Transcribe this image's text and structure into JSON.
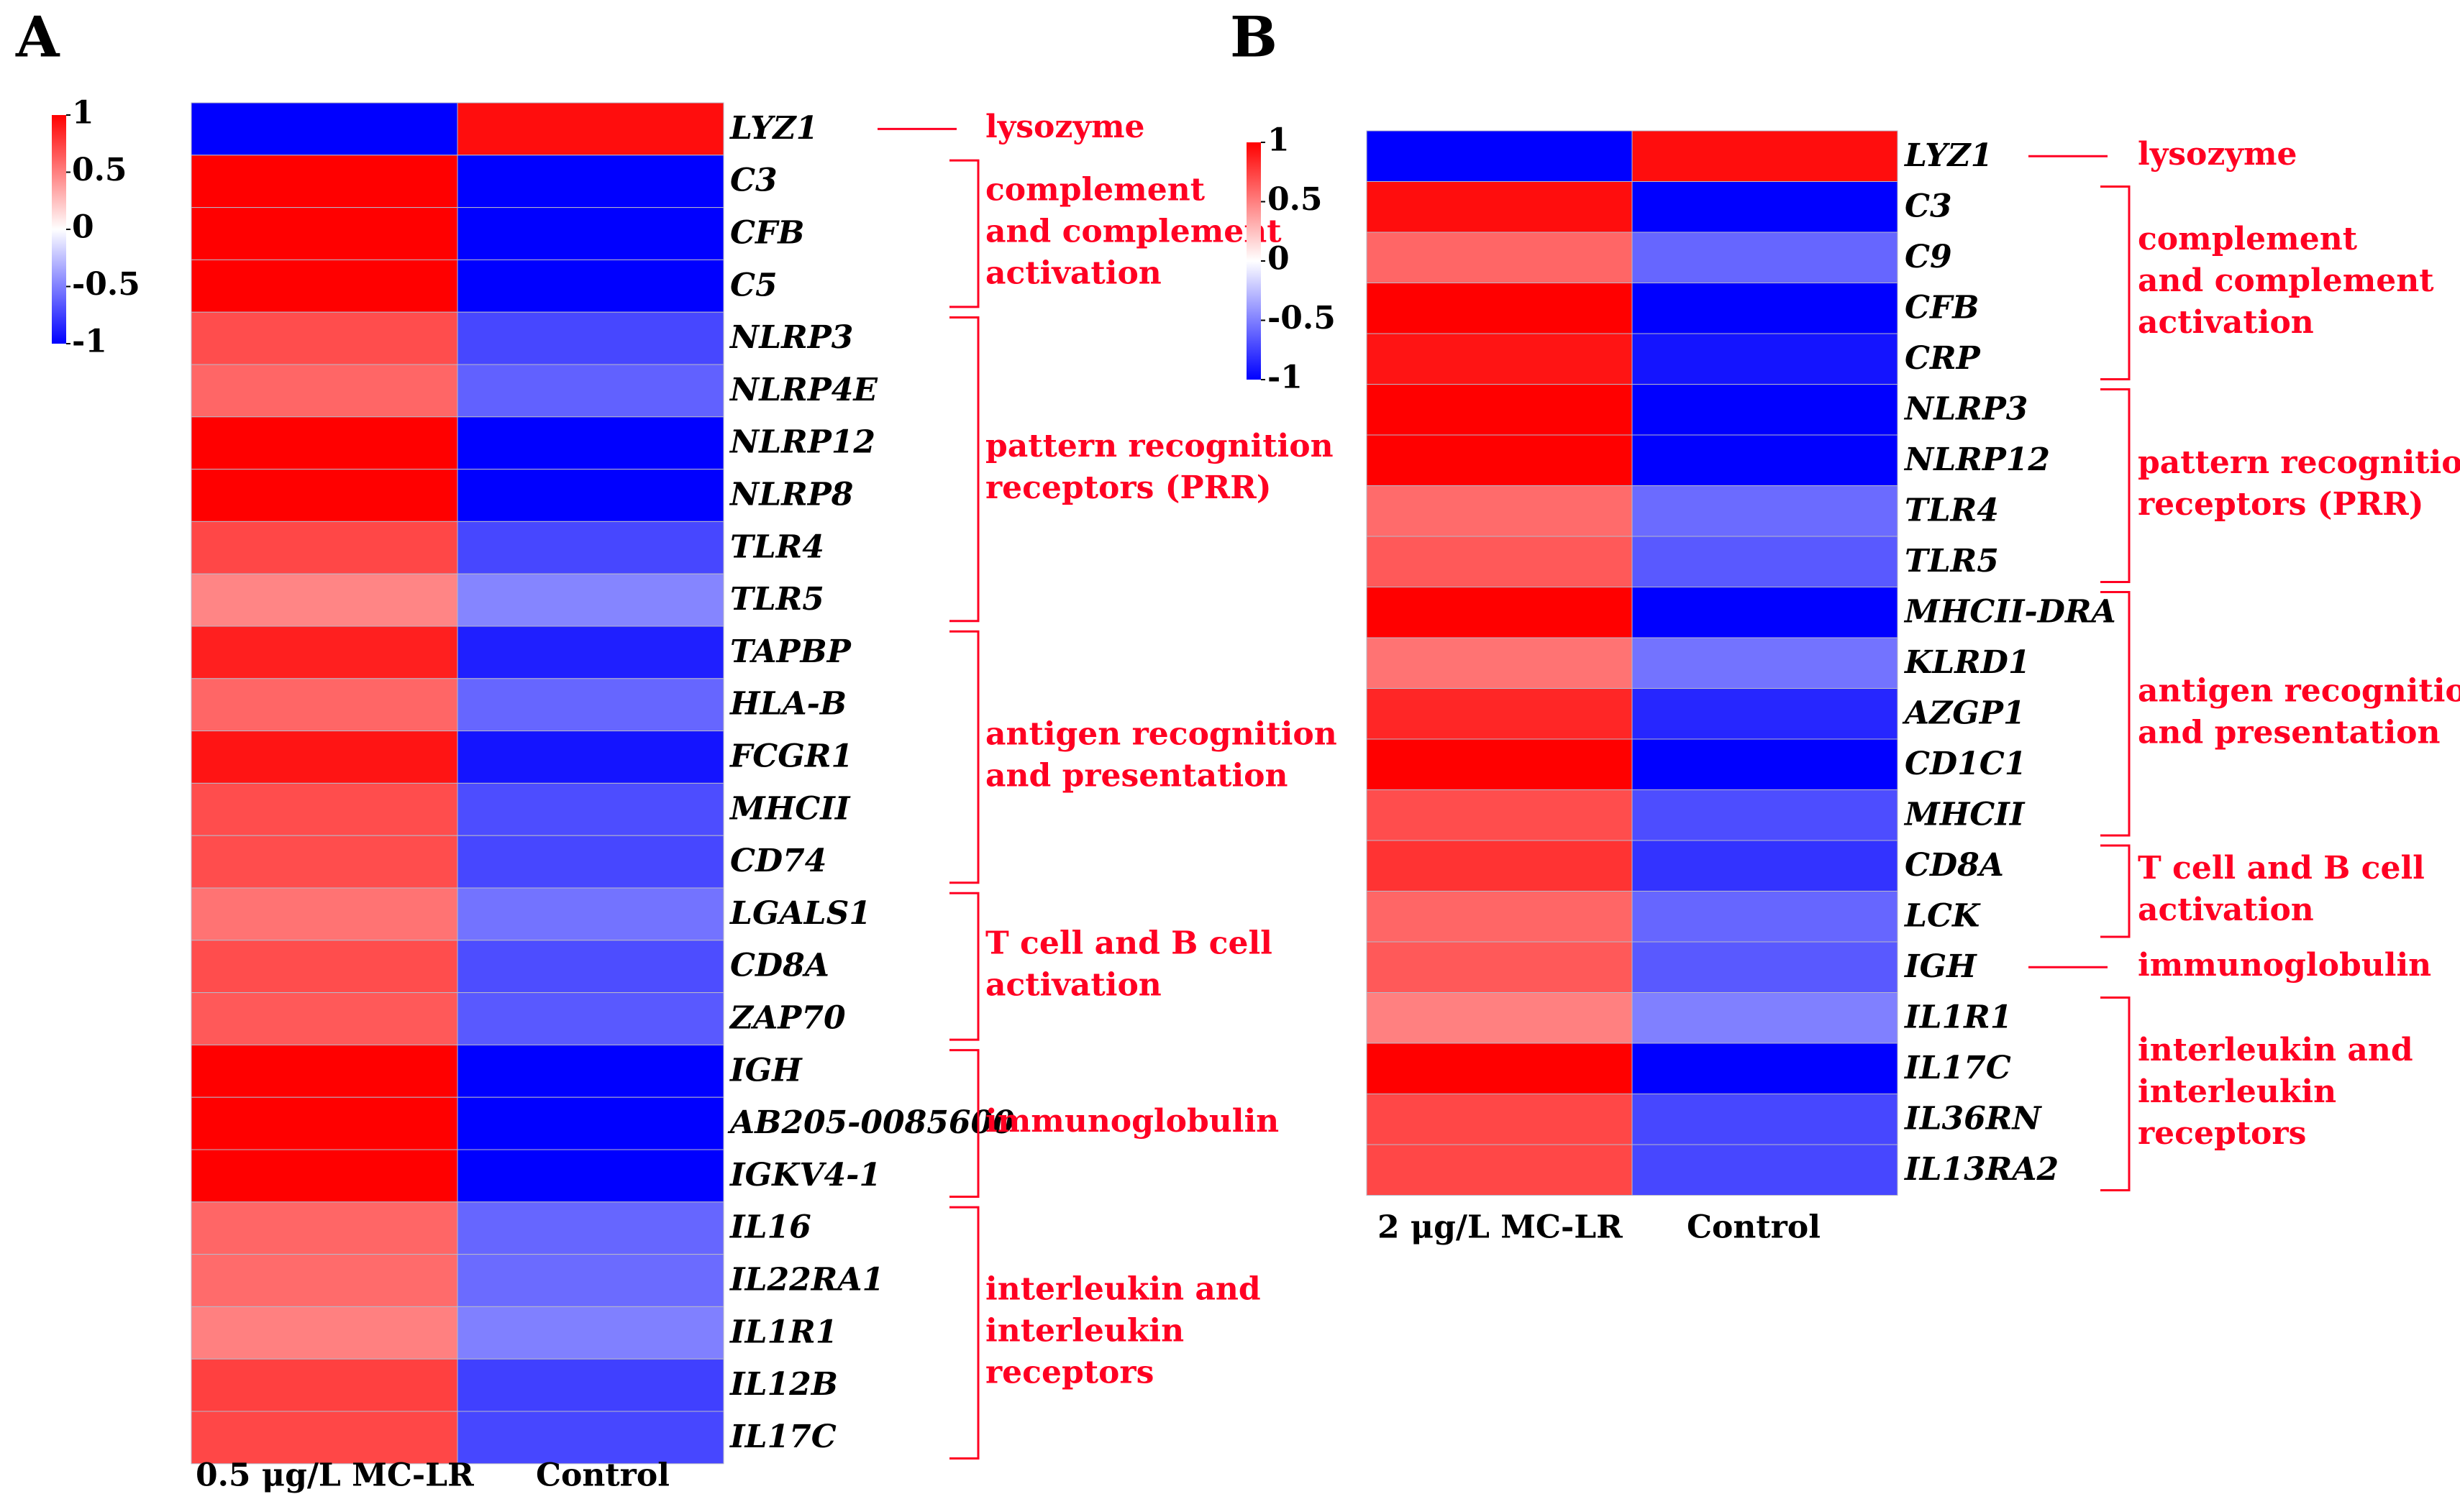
{
  "chart_data": [
    {
      "type": "heatmap",
      "panel_label": "A",
      "colorbar": {
        "min": -1,
        "max": 1,
        "ticks": [
          "1",
          "0.5",
          "0",
          "-0.5",
          "-1"
        ],
        "colors": {
          "high": "#ff0000",
          "mid": "#ffffff",
          "low": "#0000ff"
        }
      },
      "columns": [
        "0.5 μg/L MC-LR",
        "Control"
      ],
      "rows": [
        {
          "gene": "LYZ1",
          "values": [
            -1,
            0.95
          ]
        },
        {
          "gene": "C3",
          "values": [
            1,
            -1
          ]
        },
        {
          "gene": "CFB",
          "values": [
            1,
            -1
          ]
        },
        {
          "gene": "C5",
          "values": [
            1,
            -1
          ]
        },
        {
          "gene": "NLRP3",
          "values": [
            0.7,
            -0.72
          ]
        },
        {
          "gene": "NLRP4E",
          "values": [
            0.6,
            -0.62
          ]
        },
        {
          "gene": "NLRP12",
          "values": [
            1,
            -1
          ]
        },
        {
          "gene": "NLRP8",
          "values": [
            1,
            -1
          ]
        },
        {
          "gene": "TLR4",
          "values": [
            0.72,
            -0.72
          ]
        },
        {
          "gene": "TLR5",
          "values": [
            0.48,
            -0.48
          ]
        },
        {
          "gene": "TAPBP",
          "values": [
            0.88,
            -0.88
          ]
        },
        {
          "gene": "HLA-B",
          "values": [
            0.6,
            -0.6
          ]
        },
        {
          "gene": "FCGR1",
          "values": [
            0.92,
            -0.92
          ]
        },
        {
          "gene": "MHCII",
          "values": [
            0.7,
            -0.7
          ]
        },
        {
          "gene": "CD74",
          "values": [
            0.7,
            -0.72
          ]
        },
        {
          "gene": "LGALS1",
          "values": [
            0.55,
            -0.55
          ]
        },
        {
          "gene": "CD8A",
          "values": [
            0.7,
            -0.7
          ]
        },
        {
          "gene": "ZAP70",
          "values": [
            0.65,
            -0.65
          ]
        },
        {
          "gene": "IGH",
          "values": [
            1,
            -1
          ]
        },
        {
          "gene": "AB205-0085600",
          "values": [
            1,
            -1
          ]
        },
        {
          "gene": "IGKV4-1",
          "values": [
            1,
            -1
          ]
        },
        {
          "gene": "IL16",
          "values": [
            0.6,
            -0.6
          ]
        },
        {
          "gene": "IL22RA1",
          "values": [
            0.58,
            -0.58
          ]
        },
        {
          "gene": "IL1R1",
          "values": [
            0.5,
            -0.5
          ]
        },
        {
          "gene": "IL12B",
          "values": [
            0.75,
            -0.75
          ]
        },
        {
          "gene": "IL17C",
          "values": [
            0.72,
            -0.72
          ]
        }
      ],
      "groups": [
        {
          "label": [
            "lysozyme"
          ],
          "from": 0,
          "to": 0,
          "bracket": false
        },
        {
          "label": [
            "complement",
            "and complement",
            "activation"
          ],
          "from": 1,
          "to": 3,
          "bracket": true
        },
        {
          "label": [
            "pattern recognition",
            "receptors (PRR)"
          ],
          "from": 4,
          "to": 9,
          "bracket": true
        },
        {
          "label": [
            "antigen recognition",
            "and presentation"
          ],
          "from": 10,
          "to": 14,
          "bracket": true
        },
        {
          "label": [
            "T cell and B cell",
            "activation"
          ],
          "from": 15,
          "to": 17,
          "bracket": true
        },
        {
          "label": [
            "immunoglobulin"
          ],
          "from": 18,
          "to": 20,
          "bracket": true
        },
        {
          "label": [
            "interleukin and",
            "interleukin",
            "receptors"
          ],
          "from": 21,
          "to": 25,
          "bracket": true
        }
      ]
    },
    {
      "type": "heatmap",
      "panel_label": "B",
      "colorbar": {
        "min": -1,
        "max": 1,
        "ticks": [
          "1",
          "0.5",
          "0",
          "-0.5",
          "-1"
        ],
        "colors": {
          "high": "#ff0000",
          "mid": "#ffffff",
          "low": "#0000ff"
        }
      },
      "columns": [
        "2 μg/L MC-LR",
        "Control"
      ],
      "rows": [
        {
          "gene": "LYZ1",
          "values": [
            -1,
            0.95
          ]
        },
        {
          "gene": "C3",
          "values": [
            0.95,
            -1
          ]
        },
        {
          "gene": "C9",
          "values": [
            0.6,
            -0.6
          ]
        },
        {
          "gene": "CFB",
          "values": [
            1,
            -1
          ]
        },
        {
          "gene": "CRP",
          "values": [
            0.92,
            -0.92
          ]
        },
        {
          "gene": "NLRP3",
          "values": [
            1,
            -1
          ]
        },
        {
          "gene": "NLRP12",
          "values": [
            1,
            -1
          ]
        },
        {
          "gene": "TLR4",
          "values": [
            0.58,
            -0.58
          ]
        },
        {
          "gene": "TLR5",
          "values": [
            0.65,
            -0.65
          ]
        },
        {
          "gene": "MHCII-DRA",
          "values": [
            1,
            -1
          ]
        },
        {
          "gene": "KLRD1",
          "values": [
            0.55,
            -0.55
          ]
        },
        {
          "gene": "AZGP1",
          "values": [
            0.85,
            -0.85
          ]
        },
        {
          "gene": "CD1C1",
          "values": [
            1,
            -1
          ]
        },
        {
          "gene": "MHCII",
          "values": [
            0.7,
            -0.7
          ]
        },
        {
          "gene": "CD8A",
          "values": [
            0.8,
            -0.8
          ]
        },
        {
          "gene": "LCK",
          "values": [
            0.6,
            -0.6
          ]
        },
        {
          "gene": "IGH",
          "values": [
            0.65,
            -0.65
          ]
        },
        {
          "gene": "IL1R1",
          "values": [
            0.5,
            -0.5
          ]
        },
        {
          "gene": "IL17C",
          "values": [
            1,
            -1
          ]
        },
        {
          "gene": "IL36RN",
          "values": [
            0.72,
            -0.72
          ]
        },
        {
          "gene": "IL13RA2",
          "values": [
            0.72,
            -0.72
          ]
        }
      ],
      "groups": [
        {
          "label": [
            "lysozyme"
          ],
          "from": 0,
          "to": 0,
          "bracket": false
        },
        {
          "label": [
            "complement",
            "and complement",
            "activation"
          ],
          "from": 1,
          "to": 4,
          "bracket": true
        },
        {
          "label": [
            "pattern recognition",
            "receptors (PRR)"
          ],
          "from": 5,
          "to": 8,
          "bracket": true
        },
        {
          "label": [
            "antigen recognition",
            "and presentation"
          ],
          "from": 9,
          "to": 13,
          "bracket": true
        },
        {
          "label": [
            "T cell and B cell",
            "activation"
          ],
          "from": 14,
          "to": 15,
          "bracket": true
        },
        {
          "label": [
            "immunoglobulin"
          ],
          "from": 16,
          "to": 16,
          "bracket": false
        },
        {
          "label": [
            "interleukin and",
            "interleukin",
            "receptors"
          ],
          "from": 17,
          "to": 20,
          "bracket": true
        }
      ]
    }
  ]
}
